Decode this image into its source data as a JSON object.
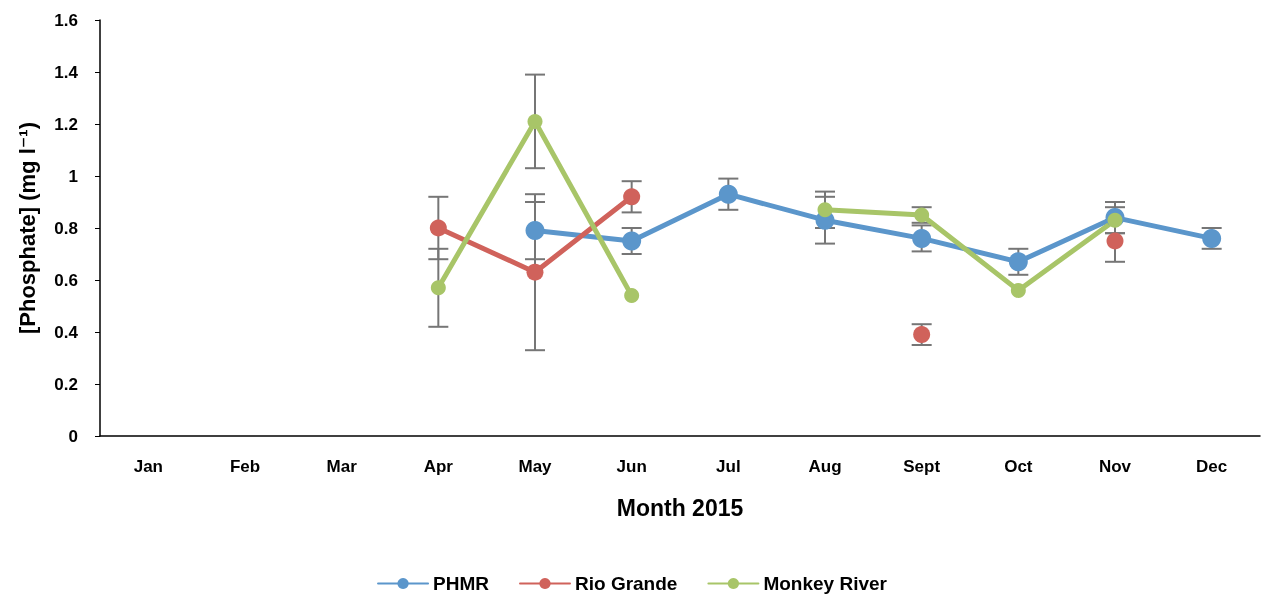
{
  "chart_data": {
    "type": "line",
    "xlabel": "Month 2015",
    "ylabel": "[Phosphate] (mg l⁻¹)",
    "categories": [
      "Jan",
      "Feb",
      "Mar",
      "Apr",
      "May",
      "Jun",
      "Jul",
      "Aug",
      "Sept",
      "Oct",
      "Nov",
      "Dec"
    ],
    "series": [
      {
        "name": "PHMR",
        "color": "#5b96cb",
        "values": [
          null,
          null,
          null,
          null,
          0.79,
          0.75,
          0.93,
          0.83,
          0.76,
          0.67,
          0.84,
          0.76
        ],
        "errors": [
          null,
          null,
          null,
          null,
          0.11,
          0.05,
          0.06,
          0.09,
          0.05,
          0.05,
          0.06,
          0.04
        ]
      },
      {
        "name": "Rio Grande",
        "color": "#d0625b",
        "values": [
          null,
          null,
          null,
          0.8,
          0.63,
          0.92,
          null,
          null,
          0.39,
          null,
          0.75,
          null
        ],
        "errors": [
          null,
          null,
          null,
          0.12,
          0.3,
          0.06,
          null,
          null,
          0.04,
          null,
          0.08,
          null
        ]
      },
      {
        "name": "Monkey River",
        "color": "#a8c568",
        "values": [
          null,
          null,
          null,
          0.57,
          1.21,
          0.54,
          null,
          0.87,
          0.85,
          0.56,
          0.83,
          null
        ],
        "errors": [
          null,
          null,
          null,
          0.15,
          0.18,
          null,
          null,
          0.07,
          0.03,
          null,
          0.05,
          null
        ]
      }
    ],
    "ylim": [
      0,
      1.6
    ],
    "yticks": [
      0,
      0.2,
      0.4,
      0.6,
      0.8,
      1,
      1.2,
      1.4,
      1.6
    ],
    "grid": false,
    "legend": "bottom",
    "marker": "circle",
    "line_style": "solid"
  }
}
